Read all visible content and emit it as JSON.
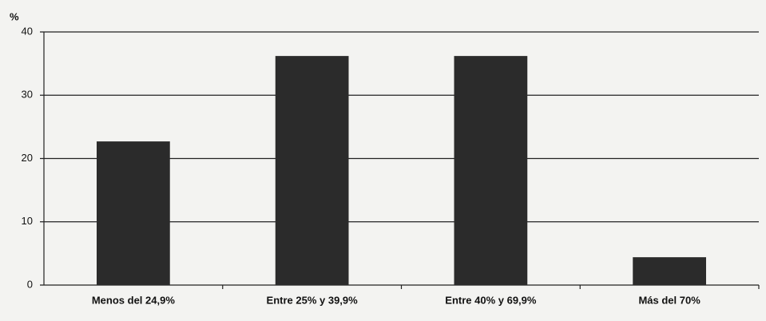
{
  "chart_data": {
    "type": "bar",
    "y_label": "%",
    "categories": [
      "Menos del 24,9%",
      "Entre 25% y 39,9%",
      "Entre 40% y 69,9%",
      "Más del 70%"
    ],
    "values": [
      22.7,
      36.2,
      36.2,
      4.4
    ],
    "color": "#2b2b2b",
    "ylim": [
      0,
      40
    ],
    "yticks": [
      0,
      10,
      20,
      30,
      40
    ],
    "grid": true
  }
}
